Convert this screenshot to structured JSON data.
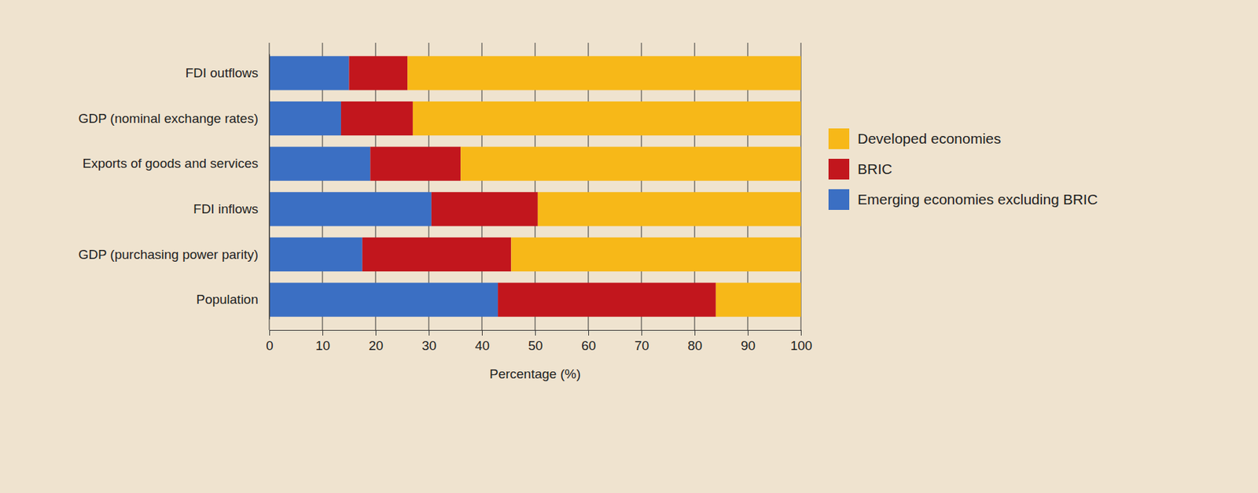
{
  "chart_data": {
    "type": "bar",
    "orientation": "horizontal",
    "stacked": true,
    "grid": true,
    "legend": "right",
    "x_label": "Percentage (%)",
    "categories": [
      "FDI outflows",
      "GDP (nominal exchange rates)",
      "Exports of goods and services",
      "FDI inflows",
      "GDP (purchasing power parity)",
      "Population"
    ],
    "series": [
      {
        "name": "Emerging economies excluding BRIC",
        "color": "#3b6fc3",
        "values": [
          15,
          13.5,
          19,
          30.5,
          17.5,
          43
        ]
      },
      {
        "name": "BRIC",
        "color": "#c2161d",
        "values": [
          11,
          13.5,
          17,
          20,
          28,
          41
        ]
      },
      {
        "name": "Developed economies",
        "color": "#f7b818",
        "values": [
          74,
          73,
          64,
          49.5,
          54.5,
          16
        ]
      }
    ],
    "xlim": [
      0,
      100
    ],
    "xticks": [
      0,
      10,
      20,
      30,
      40,
      50,
      60,
      70,
      80,
      90,
      100
    ]
  }
}
